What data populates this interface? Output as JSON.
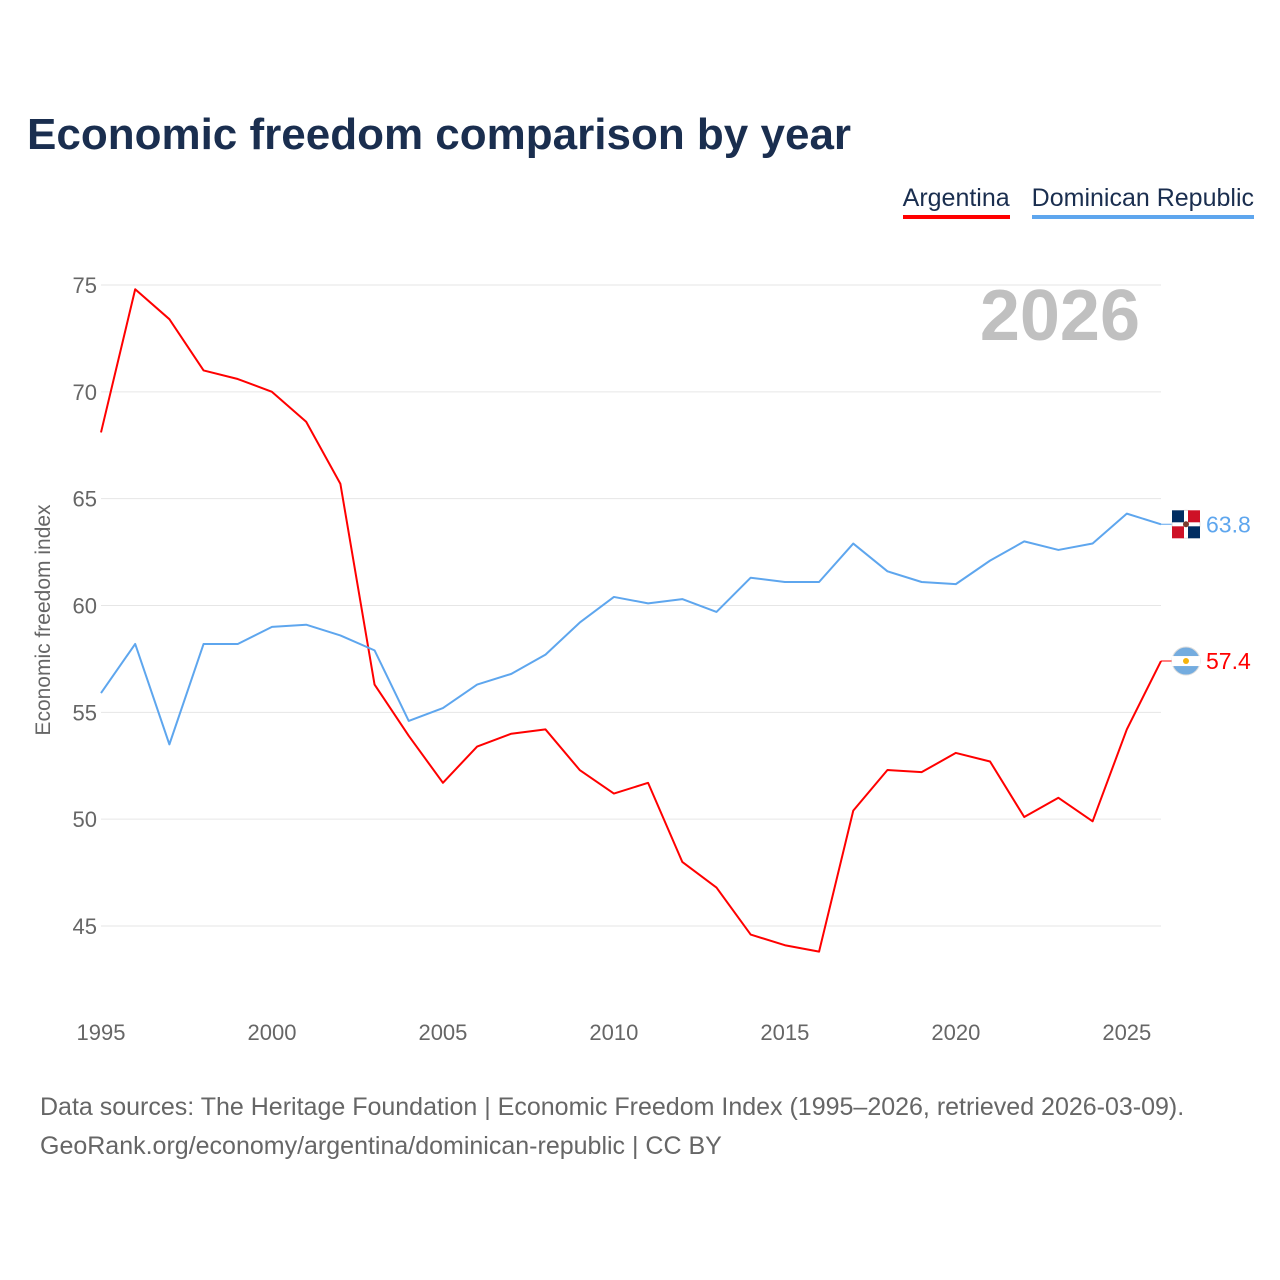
{
  "title": "Economic freedom comparison by year",
  "footer": {
    "line1": "Data sources: The Heritage Foundation | Economic Freedom Index (1995–2026, retrieved 2026-03-09).",
    "line2": "GeoRank.org/economy/argentina/dominican-republic | CC BY"
  },
  "chart_data": {
    "type": "line",
    "title": "Economic freedom comparison by year",
    "xlabel": "",
    "ylabel": "Economic freedom index",
    "watermark_year": "2026",
    "xlim": [
      1995,
      2026
    ],
    "ylim": [
      42,
      76
    ],
    "yticks": [
      45,
      50,
      55,
      60,
      65,
      70,
      75
    ],
    "xticks": [
      1995,
      2000,
      2005,
      2010,
      2015,
      2020,
      2025
    ],
    "grid": true,
    "legend_placement": "top-right",
    "x": [
      1995,
      1996,
      1997,
      1998,
      1999,
      2000,
      2001,
      2002,
      2003,
      2004,
      2005,
      2006,
      2007,
      2008,
      2009,
      2010,
      2011,
      2012,
      2013,
      2014,
      2015,
      2016,
      2017,
      2018,
      2019,
      2020,
      2021,
      2022,
      2023,
      2024,
      2025,
      2026
    ],
    "series": [
      {
        "name": "Argentina",
        "color": "#ff0000",
        "end_label": "57.4",
        "values": [
          68.1,
          74.8,
          73.4,
          71.0,
          70.6,
          70.0,
          68.6,
          65.7,
          56.3,
          53.9,
          51.7,
          53.4,
          54.0,
          54.2,
          52.3,
          51.2,
          51.7,
          48.0,
          46.8,
          44.6,
          44.1,
          43.8,
          50.4,
          52.3,
          52.2,
          53.1,
          52.7,
          50.1,
          51.0,
          49.9,
          54.2,
          57.4
        ]
      },
      {
        "name": "Dominican Republic",
        "color": "#5ea6ee",
        "end_label": "63.8",
        "values": [
          55.9,
          58.2,
          53.5,
          58.2,
          58.2,
          59.0,
          59.1,
          58.6,
          57.9,
          54.6,
          55.2,
          56.3,
          56.8,
          57.7,
          59.2,
          60.4,
          60.1,
          60.3,
          59.7,
          61.3,
          61.1,
          61.1,
          62.9,
          61.6,
          61.1,
          61.0,
          62.1,
          63.0,
          62.6,
          62.9,
          64.3,
          63.8
        ]
      }
    ]
  }
}
